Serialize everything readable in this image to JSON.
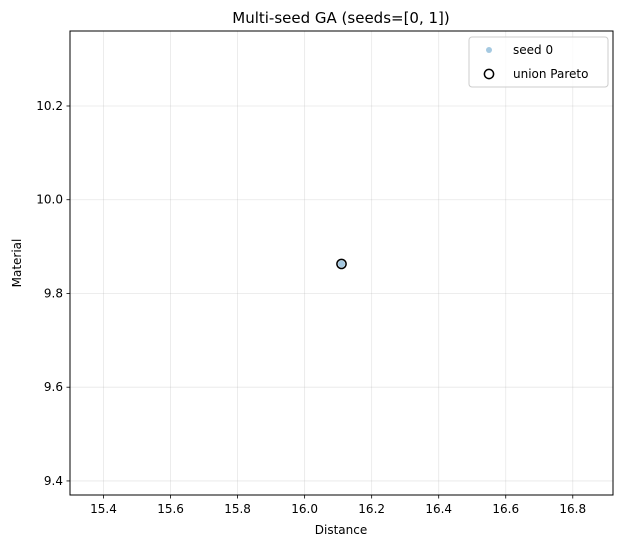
{
  "chart_data": {
    "type": "scatter",
    "title": "Multi-seed GA (seeds=[0, 1])",
    "xlabel": "Distance",
    "ylabel": "Material",
    "xlim": [
      15.3,
      16.92
    ],
    "ylim": [
      9.37,
      10.36
    ],
    "xticks": [
      15.4,
      15.6,
      15.8,
      16.0,
      16.2,
      16.4,
      16.6,
      16.8
    ],
    "xtick_labels": [
      "15.4",
      "15.6",
      "15.8",
      "16.0",
      "16.2",
      "16.4",
      "16.6",
      "16.8"
    ],
    "yticks": [
      9.4,
      9.6,
      9.8,
      10.0,
      10.2
    ],
    "ytick_labels": [
      "9.4",
      "9.6",
      "9.8",
      "10.0",
      "10.2"
    ],
    "grid": true,
    "legend_position": "top-right",
    "series": [
      {
        "name": "seed 0",
        "marker": "filled-circle-small",
        "color": "#1f77b4",
        "alpha": 0.4,
        "points": [
          {
            "x": 16.11,
            "y": 9.863
          }
        ]
      },
      {
        "name": "union Pareto",
        "marker": "hollow-circle",
        "color": "#000000",
        "points": [
          {
            "x": 16.11,
            "y": 9.863
          }
        ]
      }
    ]
  }
}
